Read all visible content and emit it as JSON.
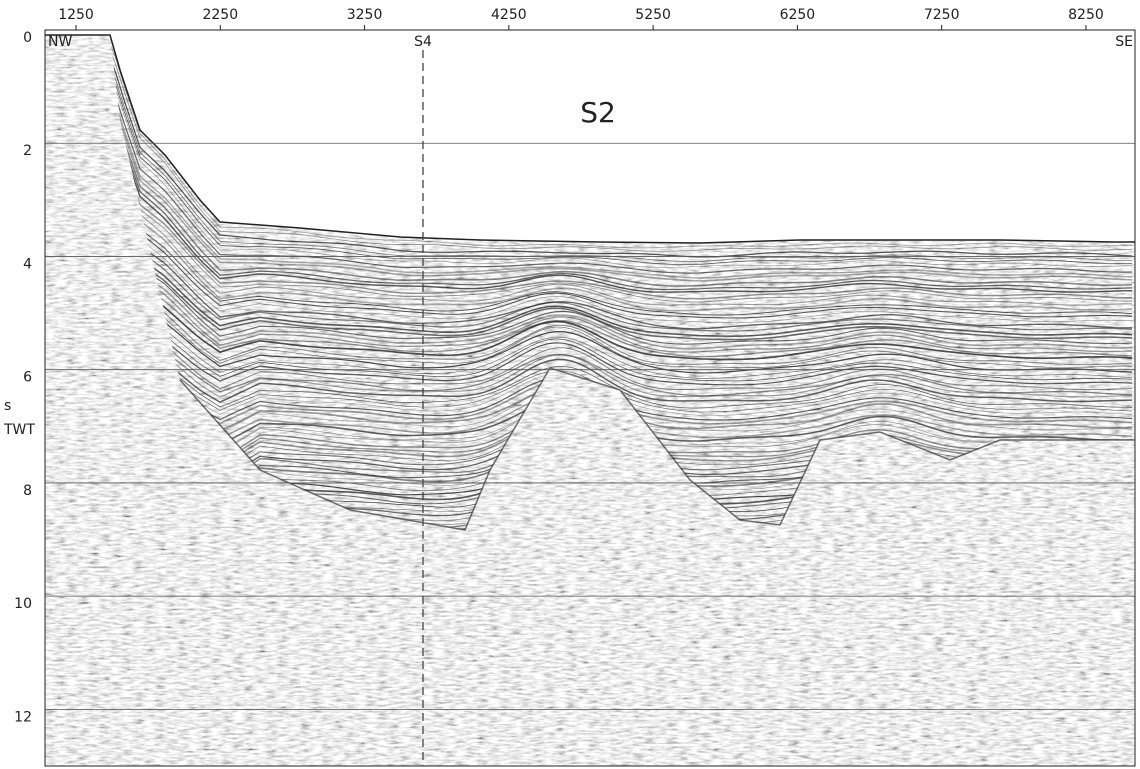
{
  "figure": {
    "x_ticks": [
      1250,
      2250,
      3250,
      4250,
      5250,
      6250,
      7250,
      8250
    ],
    "xlim": [
      1035,
      8590
    ],
    "y_ticks": [
      0,
      2,
      4,
      6,
      8,
      10,
      12
    ],
    "ylim": [
      0,
      13
    ],
    "y_unit": "s",
    "y_label": "TWT",
    "left_label": "NW",
    "right_label": "SE",
    "marker": {
      "label": "S4",
      "x": 3655
    },
    "section_label": "S2",
    "grid": true
  }
}
